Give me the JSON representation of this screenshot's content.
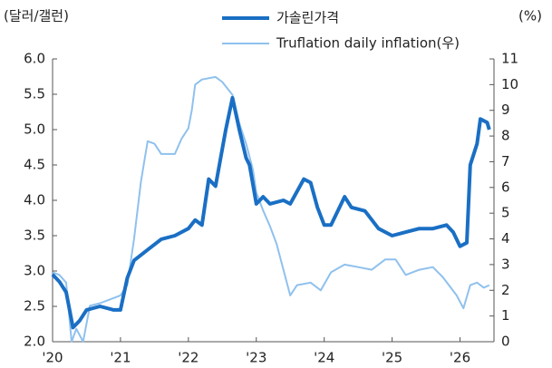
{
  "chart_data": {
    "type": "line",
    "y_label": "(달러/갤런)",
    "y2_label": "(%)",
    "xlim": [
      2020,
      2026.5
    ],
    "xticks": [
      {
        "value": 2020,
        "label": "'20"
      },
      {
        "value": 2021,
        "label": "'21"
      },
      {
        "value": 2022,
        "label": "'22"
      },
      {
        "value": 2023,
        "label": "'23"
      },
      {
        "value": 2024,
        "label": "'24"
      },
      {
        "value": 2025,
        "label": "'25"
      },
      {
        "value": 2026,
        "label": "'26"
      }
    ],
    "ylim": [
      2.0,
      6.0
    ],
    "yticks": [
      {
        "value": 2,
        "label": "2.0"
      },
      2.5,
      {
        "value": 3,
        "label": "3.0"
      },
      3.5,
      {
        "value": 4,
        "label": "4.0"
      },
      4.5,
      {
        "value": 5,
        "label": "5.0"
      },
      5.5,
      {
        "value": 6,
        "label": "6.0"
      }
    ],
    "y2lim": [
      0,
      11
    ],
    "y2ticks": [
      0,
      1,
      2,
      3,
      4,
      5,
      6,
      7,
      8,
      9,
      10,
      11
    ],
    "legend": "top",
    "series": [
      {
        "name": "가솔린가격",
        "color": "#1a6fc4",
        "width": 4,
        "x": [
          2020.0,
          2020.1,
          2020.2,
          2020.3,
          2020.4,
          2020.5,
          2020.7,
          2020.9,
          2021.0,
          2021.1,
          2021.2,
          2021.4,
          2021.6,
          2021.8,
          2022.0,
          2022.1,
          2022.2,
          2022.3,
          2022.4,
          2022.55,
          2022.65,
          2022.75,
          2022.85,
          2022.9,
          2023.0,
          2023.1,
          2023.2,
          2023.4,
          2023.5,
          2023.7,
          2023.8,
          2023.9,
          2024.0,
          2024.1,
          2024.3,
          2024.4,
          2024.6,
          2024.8,
          2025.0,
          2025.2,
          2025.4,
          2025.6,
          2025.8,
          2025.9,
          2026.0,
          2026.1,
          2026.15,
          2026.25,
          2026.3,
          2026.4,
          2026.43
        ],
        "values": [
          2.95,
          2.85,
          2.7,
          2.2,
          2.3,
          2.45,
          2.5,
          2.45,
          2.45,
          2.9,
          3.15,
          3.3,
          3.45,
          3.5,
          3.6,
          3.72,
          3.65,
          4.3,
          4.2,
          5.0,
          5.45,
          5.0,
          4.6,
          4.5,
          3.95,
          4.05,
          3.95,
          4.0,
          3.95,
          4.3,
          4.25,
          3.9,
          3.65,
          3.65,
          4.05,
          3.9,
          3.85,
          3.6,
          3.5,
          3.55,
          3.6,
          3.6,
          3.65,
          3.55,
          3.35,
          3.4,
          4.5,
          4.8,
          5.15,
          5.1,
          5.0
        ]
      },
      {
        "name": "Truflation daily inflation(우)",
        "color": "#8fc1ee",
        "width": 2,
        "axis": "y2",
        "x": [
          2020.0,
          2020.1,
          2020.2,
          2020.28,
          2020.35,
          2020.45,
          2020.55,
          2020.7,
          2020.9,
          2021.0,
          2021.1,
          2021.2,
          2021.3,
          2021.35,
          2021.4,
          2021.5,
          2021.6,
          2021.8,
          2021.9,
          2022.0,
          2022.05,
          2022.1,
          2022.2,
          2022.4,
          2022.5,
          2022.65,
          2022.75,
          2022.85,
          2022.95,
          2023.0,
          2023.1,
          2023.2,
          2023.3,
          2023.4,
          2023.5,
          2023.6,
          2023.8,
          2023.95,
          2024.1,
          2024.3,
          2024.5,
          2024.7,
          2024.9,
          2025.05,
          2025.2,
          2025.4,
          2025.6,
          2025.75,
          2025.95,
          2026.05,
          2026.15,
          2026.25,
          2026.35,
          2026.43
        ],
        "values": [
          2.7,
          2.6,
          2.3,
          0.0,
          0.5,
          0.0,
          1.4,
          1.5,
          1.7,
          1.8,
          2.2,
          4.0,
          6.2,
          7.0,
          7.8,
          7.7,
          7.3,
          7.3,
          7.9,
          8.3,
          9.0,
          10.0,
          10.2,
          10.3,
          10.1,
          9.6,
          8.5,
          7.7,
          6.7,
          5.8,
          5.1,
          4.5,
          3.8,
          2.8,
          1.8,
          2.2,
          2.3,
          2.0,
          2.7,
          3.0,
          2.9,
          2.8,
          3.2,
          3.2,
          2.6,
          2.8,
          2.9,
          2.5,
          1.8,
          1.3,
          2.2,
          2.3,
          2.1,
          2.2
        ]
      }
    ]
  }
}
